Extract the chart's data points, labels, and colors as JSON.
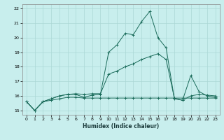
{
  "title": "",
  "xlabel": "Humidex (Indice chaleur)",
  "xlim": [
    -0.5,
    23.5
  ],
  "ylim": [
    14.7,
    22.3
  ],
  "xticks": [
    0,
    1,
    2,
    3,
    4,
    5,
    6,
    7,
    8,
    9,
    10,
    11,
    12,
    13,
    14,
    15,
    16,
    17,
    18,
    19,
    20,
    21,
    22,
    23
  ],
  "yticks": [
    15,
    16,
    17,
    18,
    19,
    20,
    21,
    22
  ],
  "background_color": "#c8eeed",
  "grid_color": "#aad8d6",
  "line_color": "#1a6b5a",
  "line1_x": [
    0,
    1,
    2,
    3,
    4,
    5,
    6,
    7,
    8,
    9,
    10,
    11,
    12,
    13,
    14,
    15,
    16,
    17,
    18,
    19,
    20,
    21,
    22,
    23
  ],
  "line1_y": [
    15.6,
    15.0,
    15.6,
    15.8,
    16.0,
    16.1,
    16.1,
    15.9,
    16.05,
    16.1,
    19.0,
    19.5,
    20.3,
    20.2,
    21.1,
    21.8,
    20.0,
    19.3,
    15.8,
    15.7,
    17.4,
    16.3,
    16.0,
    15.9
  ],
  "line2_x": [
    0,
    1,
    2,
    3,
    4,
    5,
    6,
    7,
    8,
    9,
    10,
    11,
    12,
    13,
    14,
    15,
    16,
    17,
    18,
    19,
    20,
    21,
    22,
    23
  ],
  "line2_y": [
    15.6,
    15.0,
    15.6,
    15.7,
    15.8,
    15.9,
    15.9,
    15.85,
    15.85,
    15.85,
    15.85,
    15.85,
    15.85,
    15.85,
    15.85,
    15.85,
    15.85,
    15.85,
    15.85,
    15.85,
    15.85,
    15.85,
    15.85,
    15.85
  ],
  "line3_x": [
    0,
    1,
    2,
    3,
    4,
    5,
    6,
    7,
    8,
    9,
    10,
    11,
    12,
    13,
    14,
    15,
    16,
    17,
    18,
    19,
    20,
    21,
    22,
    23
  ],
  "line3_y": [
    15.6,
    15.0,
    15.6,
    15.8,
    16.0,
    16.1,
    16.15,
    16.1,
    16.15,
    16.15,
    17.5,
    17.7,
    18.0,
    18.2,
    18.5,
    18.7,
    18.9,
    18.5,
    15.85,
    15.7,
    16.0,
    16.1,
    16.05,
    16.0
  ]
}
